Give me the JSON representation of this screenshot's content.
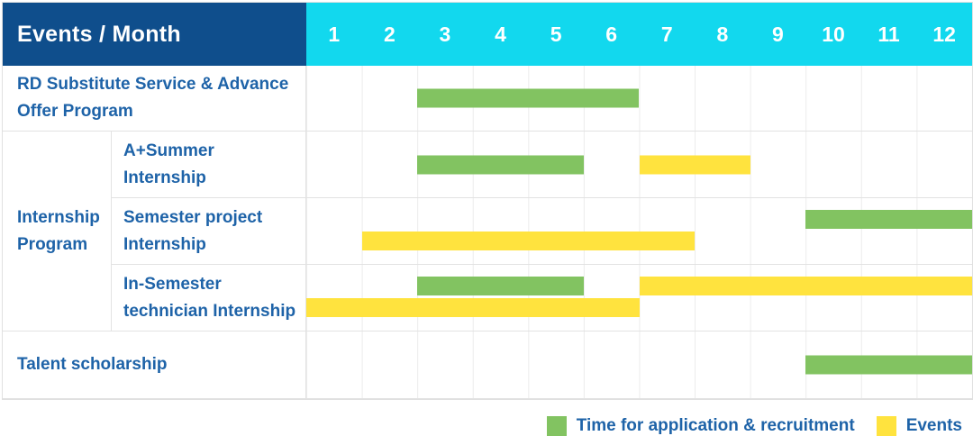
{
  "header": {
    "title": "Events / Month",
    "months": [
      "1",
      "2",
      "3",
      "4",
      "5",
      "6",
      "7",
      "8",
      "9",
      "10",
      "11",
      "12"
    ]
  },
  "rows": [
    {
      "label": "RD Substitute Service & Advance Offer Program",
      "label_spans_group_column": true,
      "bars": [
        {
          "type": "application",
          "start": 3,
          "end": 6,
          "line": "single"
        }
      ]
    },
    {
      "group": {
        "label": "Internship Program",
        "rowspan": 3
      },
      "label": "A+Summer Internship",
      "label_spans_group_column": false,
      "bars": [
        {
          "type": "application",
          "start": 3,
          "end": 5,
          "line": "single"
        },
        {
          "type": "events",
          "start": 7,
          "end": 8,
          "line": "single"
        }
      ]
    },
    {
      "label": "Semester project Internship",
      "label_spans_group_column": false,
      "bars": [
        {
          "type": "application",
          "start": 10,
          "end": 12,
          "line": "upper"
        },
        {
          "type": "events",
          "start": 2,
          "end": 7,
          "line": "lower"
        }
      ]
    },
    {
      "label": "In-Semester technician Internship",
      "label_spans_group_column": false,
      "bars": [
        {
          "type": "application",
          "start": 3,
          "end": 5,
          "line": "upper"
        },
        {
          "type": "events",
          "start": 7,
          "end": 12,
          "line": "upper"
        },
        {
          "type": "events",
          "start": 1,
          "end": 6,
          "line": "lower"
        }
      ]
    },
    {
      "label": "Talent scholarship",
      "label_spans_group_column": true,
      "bars": [
        {
          "type": "application",
          "start": 10,
          "end": 12,
          "line": "single"
        }
      ]
    }
  ],
  "legend_items": [
    {
      "type": "application",
      "label": "Time for application & recruitment"
    },
    {
      "type": "events",
      "label": "Events"
    }
  ],
  "colors": {
    "application": "#82c361",
    "events": "#ffe33e",
    "header_navy": "#0f4e8c",
    "header_cyan": "#12d8ee",
    "text_blue": "#1e63a8",
    "grid_line": "#ececec"
  },
  "chart_data": {
    "type": "gantt",
    "title": "Events / Month",
    "x_axis": {
      "label": "Month",
      "ticks": [
        1,
        2,
        3,
        4,
        5,
        6,
        7,
        8,
        9,
        10,
        11,
        12
      ],
      "range": [
        1,
        12
      ]
    },
    "grid": true,
    "legend_position": "bottom-right",
    "legend": {
      "application": "Time for application & recruitment",
      "events": "Events"
    },
    "tasks": [
      {
        "name": "RD Substitute Service & Advance Offer Program",
        "group": null,
        "application_months": [
          [
            3,
            6
          ]
        ],
        "events_months": []
      },
      {
        "name": "A+Summer Internship",
        "group": "Internship Program",
        "application_months": [
          [
            3,
            5
          ]
        ],
        "events_months": [
          [
            7,
            8
          ]
        ]
      },
      {
        "name": "Semester project Internship",
        "group": "Internship Program",
        "application_months": [
          [
            10,
            12
          ]
        ],
        "events_months": [
          [
            2,
            7
          ]
        ]
      },
      {
        "name": "In-Semester technician Internship",
        "group": "Internship Program",
        "application_months": [
          [
            3,
            5
          ]
        ],
        "events_months": [
          [
            7,
            12
          ],
          [
            1,
            6
          ]
        ]
      },
      {
        "name": "Talent scholarship",
        "group": null,
        "application_months": [
          [
            10,
            12
          ]
        ],
        "events_months": []
      }
    ]
  }
}
